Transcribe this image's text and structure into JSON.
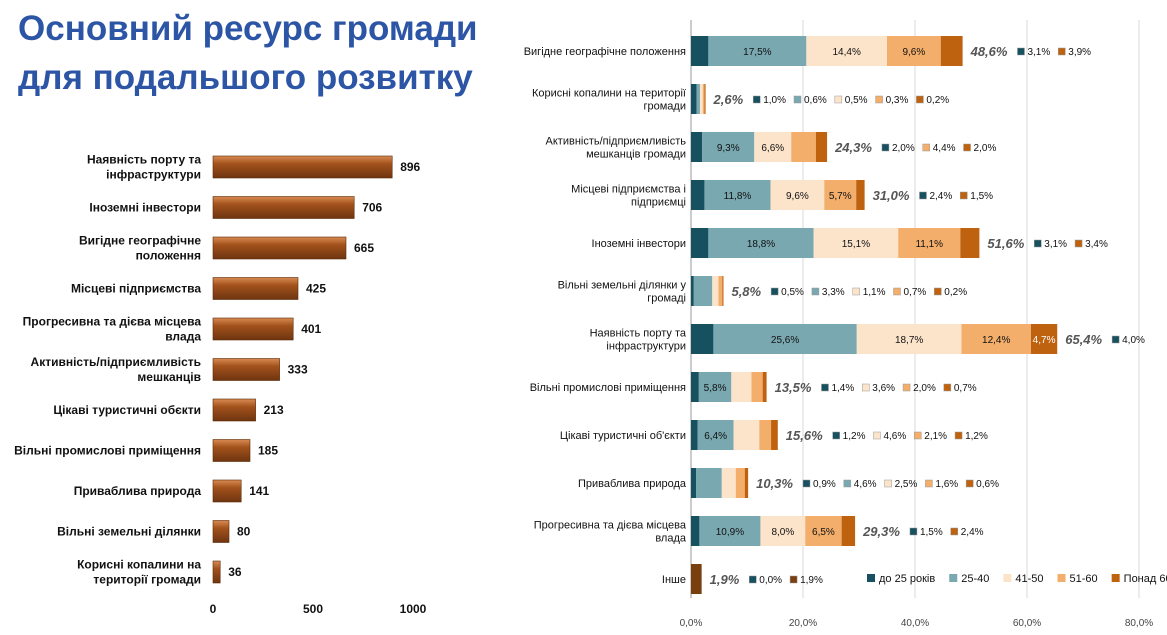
{
  "title_line1": "Основний ресурс громади",
  "title_line2": "для подальшого розвитку",
  "chart_data": [
    {
      "type": "bar",
      "orientation": "horizontal",
      "categories": [
        "Наявність порту та інфраструктури",
        "Іноземні інвестори",
        "Вигідне географічне положення",
        "Місцеві підприємства",
        "Прогресивна та дієва місцева влада",
        "Активність/підприємливість мешканців",
        "Цікаві туристичні обєкти",
        "Вільні промислові приміщення",
        "Приваблива природа",
        "Вільні земельні ділянки",
        "Корисні копалини на території громади"
      ],
      "values": [
        896,
        706,
        665,
        425,
        401,
        333,
        213,
        185,
        141,
        80,
        36
      ],
      "xlim": [
        0,
        1000
      ],
      "xticks": [
        "0",
        "500",
        "1000"
      ],
      "grid": false,
      "color": "#a3521c"
    },
    {
      "type": "bar",
      "orientation": "horizontal",
      "stacked": true,
      "categories": [
        "Вигідне географічне положення",
        "Корисні копалини на території громади",
        "Активність/підприємливість мешканців громади",
        "Місцеві підприємства і підприємці",
        "Іноземні інвестори",
        "Вільні земельні ділянки у громаді",
        "Наявність порту та інфраструктури",
        "Вільні промислові приміщення",
        "Цікаві туристичні об'єкти",
        "Приваблива природа",
        "Прогресивна та дієва місцева влада",
        "Інше"
      ],
      "series": [
        {
          "name": "до 25 років",
          "color": "#17505f",
          "values": [
            3.1,
            1.0,
            2.0,
            2.4,
            3.1,
            0.5,
            4.0,
            1.4,
            1.2,
            0.9,
            1.5,
            0.0
          ]
        },
        {
          "name": "25-40",
          "color": "#79a8b1",
          "values": [
            17.5,
            0.6,
            9.3,
            11.8,
            18.8,
            3.3,
            25.6,
            5.8,
            6.4,
            4.6,
            10.9,
            0.0
          ]
        },
        {
          "name": "41-50",
          "color": "#fce4cb",
          "values": [
            14.4,
            0.5,
            6.6,
            9.6,
            15.1,
            1.1,
            18.7,
            3.6,
            4.6,
            2.5,
            8.0,
            0.0
          ]
        },
        {
          "name": "51-60",
          "color": "#f3ae6b",
          "values": [
            9.6,
            0.3,
            4.4,
            5.7,
            11.1,
            0.7,
            12.4,
            2.0,
            2.1,
            1.6,
            6.5,
            0.0
          ]
        },
        {
          "name": "Понад 60",
          "color": "#bf6210",
          "values": [
            3.9,
            0.2,
            2.0,
            1.5,
            3.4,
            0.2,
            4.7,
            0.7,
            1.2,
            0.6,
            2.4,
            1.9
          ]
        }
      ],
      "totals": [
        "48,6%",
        "2,6%",
        "24,3%",
        "31,0%",
        "51,6%",
        "5,8%",
        "65,4%",
        "13,5%",
        "15,6%",
        "10,3%",
        "29,3%",
        "1,9%"
      ],
      "xlim": [
        0,
        80
      ],
      "xticks": [
        "0,0%",
        "20,0%",
        "40,0%",
        "60,0%",
        "80,0%"
      ],
      "grid": true,
      "legend": "bottom-right"
    }
  ]
}
